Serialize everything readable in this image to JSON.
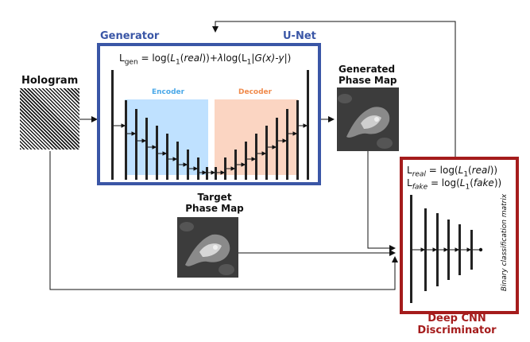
{
  "generator": {
    "title": "Generator",
    "net_name": "U-Net",
    "loss": {
      "lhs": "L",
      "lhs_sub": "gen",
      "part1": " = log(",
      "l1_a": "L",
      "l1_a_sub": "1",
      "real": "real",
      "part2": "))+",
      "lambda": "λ",
      "part3": "log(L",
      "l1_b_sub": "1",
      "part4": "|",
      "gx": "G(x)-y",
      "part5": "|)"
    },
    "encoder_label": "Encoder",
    "decoder_label": "Decoder"
  },
  "hologram": {
    "label": "Hologram"
  },
  "generated": {
    "line1": "Generated",
    "line2": "Phase Map"
  },
  "target": {
    "line1": "Target",
    "line2": "Phase Map"
  },
  "discriminator": {
    "loss_real": {
      "lhs": "L",
      "sub": "real",
      "rhs1": " = log(",
      "l1": "L",
      "l1_sub": "1",
      "arg": "real",
      "rhs2": "))"
    },
    "loss_fake": {
      "lhs": "L",
      "sub": "fake",
      "rhs1": " = log(",
      "l1": "L",
      "l1_sub": "1",
      "arg": "fake",
      "rhs2": "))"
    },
    "side_label": "Binary classification matrix",
    "title_line1": "Deep CNN",
    "title_line2": "Discriminator"
  },
  "colors": {
    "generator_blue": "#3a56a6",
    "encoder_fill": "#bfe1ff",
    "encoder_text": "#4aa8e8",
    "decoder_fill": "#fbd5c2",
    "decoder_text": "#f08a4b",
    "discriminator_red": "#a51c1c"
  }
}
